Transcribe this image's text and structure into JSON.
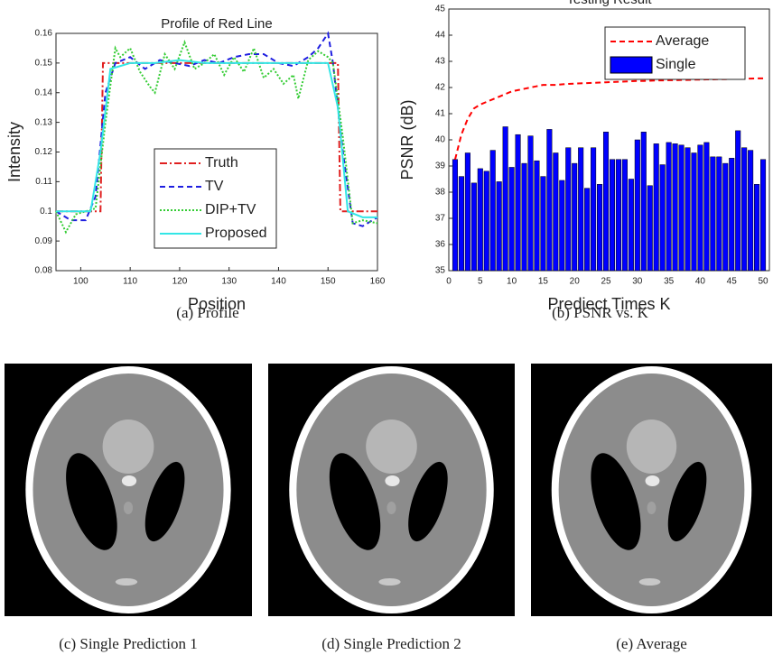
{
  "chart_data": [
    {
      "type": "line",
      "title": "Profile of Red Line",
      "xlabel": "Position",
      "ylabel": "Intensity",
      "caption": "(a) Profile",
      "xlim": [
        95,
        160
      ],
      "ylim": [
        0.08,
        0.16
      ],
      "xticks": [
        100,
        110,
        120,
        130,
        140,
        150,
        160
      ],
      "yticks": [
        0.08,
        0.09,
        0.1,
        0.11,
        0.12,
        0.13,
        0.14,
        0.15,
        0.16
      ],
      "legend": "lower right",
      "series": [
        {
          "name": "Truth",
          "color": "#e02020",
          "linestyle": "-.",
          "x": [
            95,
            104,
            104.5,
            152,
            152.5,
            160
          ],
          "values": [
            0.1,
            0.1,
            0.15,
            0.15,
            0.1,
            0.1
          ]
        },
        {
          "name": "TV",
          "color": "#1f1fe0",
          "linestyle": "--",
          "x": [
            95,
            98,
            101,
            103,
            105,
            107,
            110,
            113,
            116,
            119,
            122,
            125,
            128,
            131,
            134,
            137,
            140,
            143,
            146,
            148,
            150,
            151,
            153,
            155,
            157,
            160
          ],
          "values": [
            0.1,
            0.097,
            0.097,
            0.105,
            0.14,
            0.15,
            0.152,
            0.148,
            0.151,
            0.15,
            0.149,
            0.151,
            0.15,
            0.152,
            0.153,
            0.153,
            0.15,
            0.149,
            0.152,
            0.155,
            0.16,
            0.15,
            0.12,
            0.096,
            0.095,
            0.098
          ]
        },
        {
          "name": "DIP+TV",
          "color": "#33cc33",
          "linestyle": ":",
          "x": [
            95,
            97,
            99,
            101,
            103,
            105,
            107,
            108,
            110,
            112,
            114,
            115,
            117,
            119,
            121,
            123,
            125,
            127,
            129,
            131,
            133,
            135,
            137,
            139,
            141,
            143,
            144,
            146,
            148,
            150,
            151,
            153,
            155,
            157,
            160
          ],
          "values": [
            0.1,
            0.093,
            0.099,
            0.1,
            0.101,
            0.13,
            0.155,
            0.152,
            0.155,
            0.147,
            0.142,
            0.14,
            0.153,
            0.148,
            0.157,
            0.148,
            0.15,
            0.153,
            0.146,
            0.152,
            0.147,
            0.155,
            0.145,
            0.148,
            0.143,
            0.146,
            0.138,
            0.151,
            0.154,
            0.152,
            0.15,
            0.125,
            0.096,
            0.097,
            0.096
          ]
        },
        {
          "name": "Proposed",
          "color": "#33e6e6",
          "linestyle": "-",
          "x": [
            95,
            102,
            104,
            106,
            110,
            115,
            120,
            125,
            130,
            135,
            140,
            145,
            150,
            152,
            154,
            157,
            160
          ],
          "values": [
            0.1,
            0.1,
            0.12,
            0.148,
            0.15,
            0.15,
            0.151,
            0.15,
            0.15,
            0.15,
            0.15,
            0.15,
            0.15,
            0.135,
            0.1,
            0.098,
            0.098
          ]
        }
      ]
    },
    {
      "type": "bar",
      "title": "Testing Result",
      "xlabel": "Prediect Times K",
      "ylabel": "PSNR (dB)",
      "caption": "(b) PSNR vs. K",
      "xlim": [
        0,
        51
      ],
      "ylim": [
        35,
        45
      ],
      "xticks": [
        0,
        5,
        10,
        15,
        20,
        25,
        30,
        35,
        40,
        45,
        50
      ],
      "yticks": [
        35,
        36,
        37,
        38,
        39,
        40,
        41,
        42,
        43,
        44,
        45
      ],
      "legend": "upper right",
      "x": [
        1,
        2,
        3,
        4,
        5,
        6,
        7,
        8,
        9,
        10,
        11,
        12,
        13,
        14,
        15,
        16,
        17,
        18,
        19,
        20,
        21,
        22,
        23,
        24,
        25,
        26,
        27,
        28,
        29,
        30,
        31,
        32,
        33,
        34,
        35,
        36,
        37,
        38,
        39,
        40,
        41,
        42,
        43,
        44,
        45,
        46,
        47,
        48,
        49,
        50
      ],
      "series": [
        {
          "name": "Average",
          "type": "line",
          "color": "#ff0000",
          "linestyle": "--",
          "values": [
            39.25,
            40.2,
            40.8,
            41.2,
            41.35,
            41.45,
            41.55,
            41.65,
            41.75,
            41.85,
            41.9,
            41.95,
            42.0,
            42.05,
            42.1,
            42.1,
            42.1,
            42.12,
            42.14,
            42.15,
            42.16,
            42.17,
            42.18,
            42.19,
            42.2,
            42.21,
            42.22,
            42.23,
            42.24,
            42.25,
            42.25,
            42.26,
            42.27,
            42.27,
            42.28,
            42.28,
            42.29,
            42.29,
            42.3,
            42.3,
            42.31,
            42.31,
            42.32,
            42.32,
            42.33,
            42.33,
            42.34,
            42.34,
            42.35,
            42.35
          ]
        },
        {
          "name": "Single",
          "type": "bar",
          "color": "#0000ff",
          "values": [
            39.25,
            38.6,
            39.5,
            38.35,
            38.9,
            38.8,
            39.6,
            38.4,
            40.5,
            38.95,
            40.2,
            39.1,
            40.15,
            39.2,
            38.6,
            40.4,
            39.5,
            38.45,
            39.7,
            39.1,
            39.7,
            38.15,
            39.7,
            38.3,
            40.3,
            39.25,
            39.25,
            39.25,
            38.5,
            40.0,
            40.3,
            38.25,
            39.85,
            39.05,
            39.9,
            39.85,
            39.8,
            39.7,
            39.5,
            39.8,
            39.9,
            39.35,
            39.35,
            39.1,
            39.3,
            40.35,
            39.7,
            39.6,
            38.3,
            39.25
          ]
        }
      ]
    }
  ],
  "images": [
    {
      "caption": "(c) Single Prediction 1"
    },
    {
      "caption": "(d) Single Prediction 2"
    },
    {
      "caption": "(e) Average"
    }
  ]
}
